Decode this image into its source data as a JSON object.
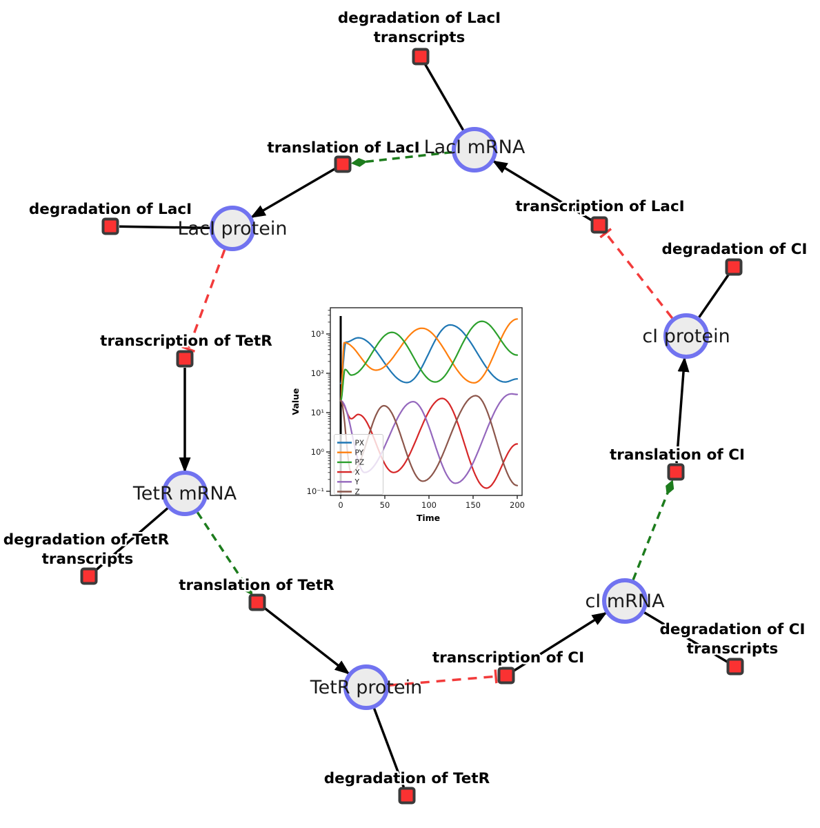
{
  "colors": {
    "species_fill": "#ececec",
    "species_border": "#7173f0",
    "reaction_fill": "#fa3232",
    "reaction_border": "#3b3b3b",
    "edge_black": "#000000",
    "edge_activation": "#1d7c1d",
    "edge_inhibition": "#f23b3b"
  },
  "species": {
    "laci_mrna": {
      "label": "LacI mRNA"
    },
    "laci_protein": {
      "label": "LacI protein"
    },
    "tetr_mrna": {
      "label": "TetR mRNA"
    },
    "tetr_protein": {
      "label": "TetR protein"
    },
    "ci_mrna": {
      "label": "cI mRNA"
    },
    "ci_protein": {
      "label": "cI protein"
    }
  },
  "reactions": {
    "deg_laci_tx": {
      "line1": "degradation of LacI",
      "line2": "transcripts"
    },
    "transl_laci": {
      "label": "translation of LacI"
    },
    "txn_laci": {
      "label": "transcription of LacI"
    },
    "deg_laci": {
      "label": "degradation of LacI"
    },
    "txn_tetr": {
      "label": "transcription of TetR"
    },
    "deg_tetr_tx": {
      "line1": "degradation of TetR",
      "line2": "transcripts"
    },
    "transl_tetr": {
      "label": "translation of TetR"
    },
    "deg_tetr": {
      "label": "degradation of TetR"
    },
    "txn_ci": {
      "label": "transcription of CI"
    },
    "deg_ci_tx": {
      "line1": "degradation of CI",
      "line2": "transcripts"
    },
    "transl_ci": {
      "label": "translation of CI"
    },
    "deg_ci": {
      "label": "degradation of CI"
    }
  },
  "chart_data": {
    "type": "line",
    "title": "",
    "xlabel": "Time",
    "ylabel": "Value",
    "y_scale": "log",
    "xlim": [
      0,
      200
    ],
    "ylim_log10": [
      -1.1,
      3.67
    ],
    "x_ticks": [
      0,
      50,
      100,
      150,
      200
    ],
    "y_tick_labels": [
      "10⁻¹",
      "10⁰",
      "10¹",
      "10²",
      "10³"
    ],
    "y_tick_log10": [
      -1,
      0,
      1,
      2,
      3
    ],
    "grid": false,
    "initial_vline_x": 0,
    "legend_position": "lower left",
    "series": [
      {
        "name": "PX",
        "color": "#1f77b4",
        "points": [
          [
            0,
            55
          ],
          [
            6,
            620
          ],
          [
            20,
            800
          ],
          [
            75,
            58
          ],
          [
            124,
            1700
          ],
          [
            186,
            60
          ],
          [
            200,
            72
          ]
        ]
      },
      {
        "name": "PY",
        "color": "#ff7f0e",
        "points": [
          [
            0,
            20
          ],
          [
            4,
            600
          ],
          [
            40,
            120
          ],
          [
            92,
            1400
          ],
          [
            151,
            57
          ],
          [
            200,
            2400
          ]
        ]
      },
      {
        "name": "PZ",
        "color": "#2ca02c",
        "points": [
          [
            0,
            20
          ],
          [
            5,
            125
          ],
          [
            12,
            90
          ],
          [
            58,
            1100
          ],
          [
            107,
            60
          ],
          [
            160,
            2100
          ],
          [
            200,
            290
          ]
        ]
      },
      {
        "name": "X",
        "color": "#d62728",
        "points": [
          [
            0,
            20
          ],
          [
            12,
            7
          ],
          [
            20,
            9
          ],
          [
            60,
            0.3
          ],
          [
            115,
            23
          ],
          [
            165,
            0.12
          ],
          [
            200,
            1.6
          ]
        ]
      },
      {
        "name": "Y",
        "color": "#9467bd",
        "points": [
          [
            0,
            20
          ],
          [
            27,
            0.3
          ],
          [
            82,
            19
          ],
          [
            130,
            0.16
          ],
          [
            193,
            30
          ],
          [
            200,
            29
          ]
        ]
      },
      {
        "name": "Z",
        "color": "#8c564b",
        "points": [
          [
            0,
            20
          ],
          [
            12,
            0.3
          ],
          [
            49,
            15
          ],
          [
            93,
            0.18
          ],
          [
            153,
            27
          ],
          [
            200,
            0.14
          ]
        ]
      }
    ]
  }
}
